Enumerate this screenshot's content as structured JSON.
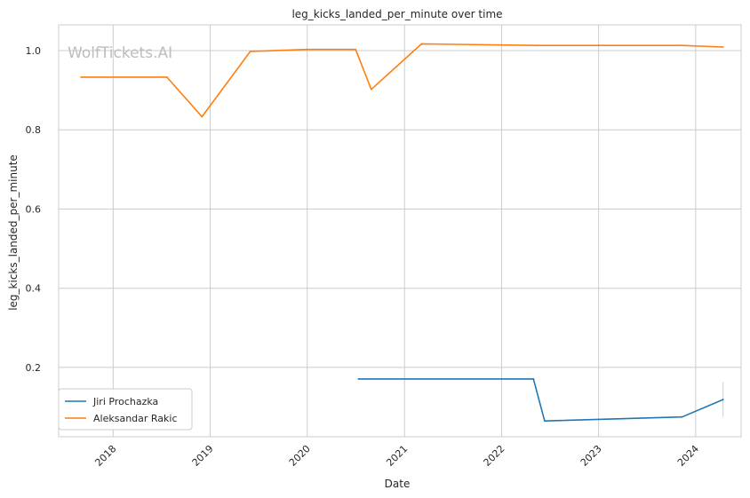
{
  "chart_data": {
    "type": "line",
    "title": "leg_kicks_landed_per_minute over time",
    "xlabel": "Date",
    "ylabel": "leg_kicks_landed_per_minute",
    "watermark": "WolfTickets.AI",
    "x_ticks": [
      "2018",
      "2019",
      "2020",
      "2021",
      "2022",
      "2023",
      "2024"
    ],
    "y_ticks": [
      "0.2",
      "0.4",
      "0.6",
      "0.8",
      "1.0"
    ],
    "xlim": [
      "2017-06-10",
      "2024-06-20"
    ],
    "ylim": [
      0.025,
      1.065
    ],
    "grid": true,
    "legend_position": "lower-left",
    "series": [
      {
        "name": "Jiri Prochazka",
        "color": "#1f77b4",
        "points": [
          {
            "x": "2020-07-12",
            "y": 0.171
          },
          {
            "x": "2022-05-01",
            "y": 0.171
          },
          {
            "x": "2022-06-12",
            "y": 0.065
          },
          {
            "x": "2023-11-11",
            "y": 0.075
          },
          {
            "x": "2024-04-13",
            "y": 0.119
          }
        ],
        "error_bar": {
          "x": "2024-04-13",
          "low": 0.075,
          "high": 0.163
        }
      },
      {
        "name": "Aleksandar Rakic",
        "color": "#ff7f0e",
        "points": [
          {
            "x": "2017-09-02",
            "y": 0.933
          },
          {
            "x": "2018-07-22",
            "y": 0.933
          },
          {
            "x": "2018-12-01",
            "y": 0.833
          },
          {
            "x": "2019-06-01",
            "y": 0.998
          },
          {
            "x": "2020-01-01",
            "y": 1.003
          },
          {
            "x": "2020-07-01",
            "y": 1.003
          },
          {
            "x": "2020-08-29",
            "y": 0.902
          },
          {
            "x": "2021-03-06",
            "y": 1.017
          },
          {
            "x": "2022-05-15",
            "y": 1.013
          },
          {
            "x": "2023-11-11",
            "y": 1.013
          },
          {
            "x": "2024-04-13",
            "y": 1.009
          }
        ]
      }
    ]
  }
}
